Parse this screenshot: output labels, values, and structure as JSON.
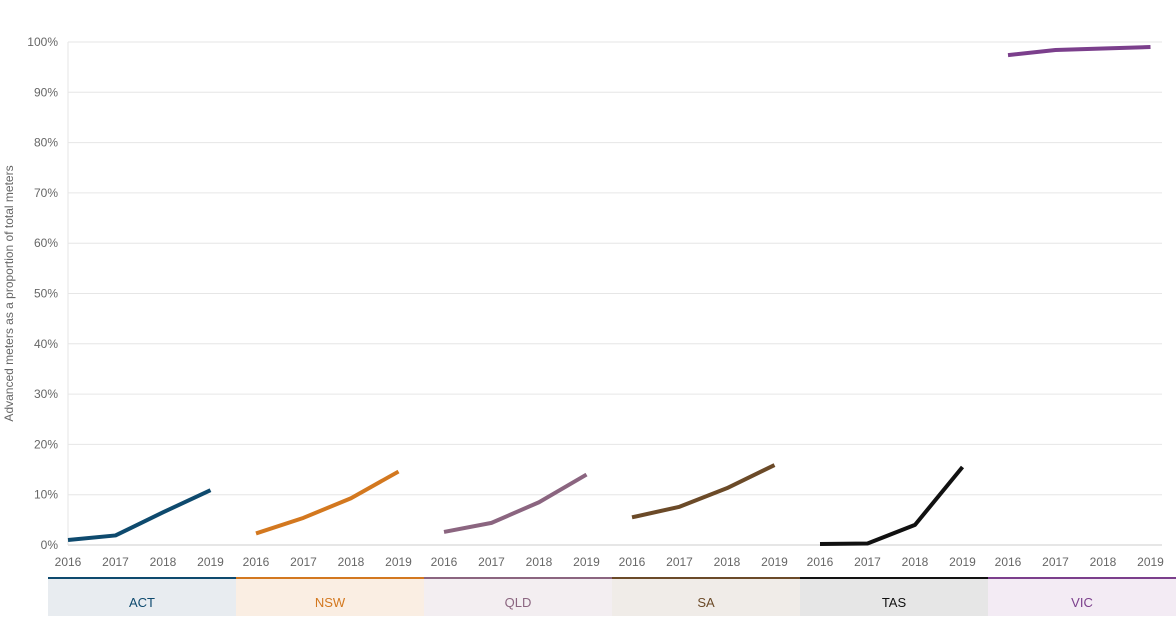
{
  "chart_data": {
    "type": "line",
    "ylabel": "Advanced meters as a proportion of total meters",
    "xlabel": "",
    "ylim": [
      0,
      100
    ],
    "y_ticks": [
      "0%",
      "10%",
      "20%",
      "30%",
      "40%",
      "50%",
      "60%",
      "70%",
      "80%",
      "90%",
      "100%"
    ],
    "y_tick_values": [
      0,
      10,
      20,
      30,
      40,
      50,
      60,
      70,
      80,
      90,
      100
    ],
    "x": [
      "2016",
      "2017",
      "2018",
      "2019"
    ],
    "grid": true,
    "series": [
      {
        "name": "ACT",
        "color": "#0e4a6e",
        "band_color": "#e8ecf0",
        "values": [
          1.0,
          1.9,
          6.5,
          10.9
        ]
      },
      {
        "name": "NSW",
        "color": "#d3781f",
        "band_color": "#faeee3",
        "values": [
          2.3,
          5.4,
          9.3,
          14.6
        ]
      },
      {
        "name": "QLD",
        "color": "#8b6580",
        "band_color": "#f3eef1",
        "values": [
          2.6,
          4.4,
          8.5,
          14.0
        ]
      },
      {
        "name": "SA",
        "color": "#6b4a28",
        "band_color": "#f0ece8",
        "values": [
          5.5,
          7.6,
          11.3,
          15.9
        ]
      },
      {
        "name": "TAS",
        "color": "#111111",
        "band_color": "#e6e6e6",
        "values": [
          0.2,
          0.3,
          4.0,
          15.5
        ]
      },
      {
        "name": "VIC",
        "color": "#7b3f8c",
        "band_color": "#f3ebf4",
        "values": [
          97.4,
          98.4,
          98.7,
          99.0
        ]
      }
    ]
  }
}
